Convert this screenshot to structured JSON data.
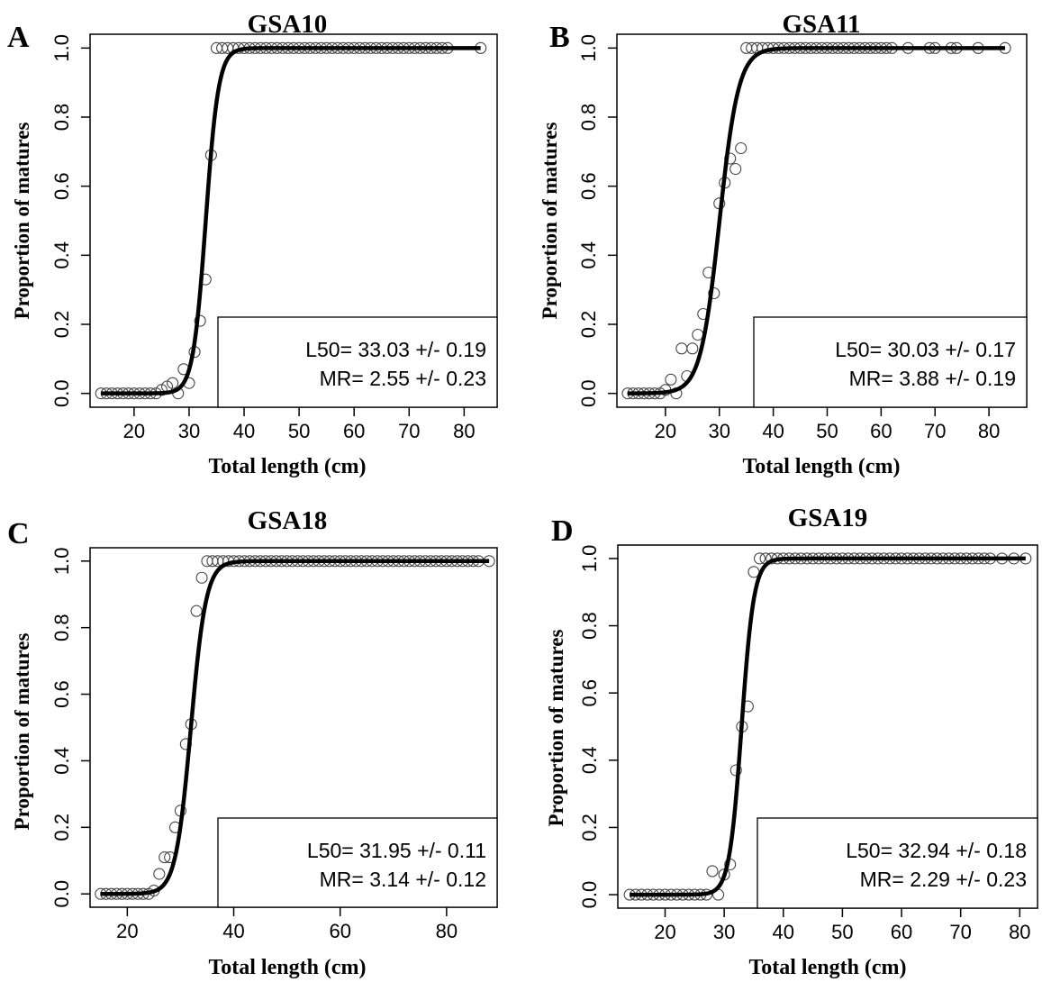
{
  "chart_data": [
    {
      "type": "scatter",
      "panel_letter": "A",
      "title": "GSA10",
      "xlabel": "Total length (cm)",
      "ylabel": "Proportion of matures",
      "xlim": [
        12,
        86
      ],
      "ylim": [
        -0.04,
        1.04
      ],
      "xticks": [
        20,
        30,
        40,
        50,
        60,
        70,
        80
      ],
      "yticks": [
        0.0,
        0.2,
        0.4,
        0.6,
        0.8,
        1.0
      ],
      "curve": {
        "model": "logistic",
        "L50": 33.03,
        "MR": 2.55
      },
      "annotation": [
        "L50=  33.03 +/- 0.19",
        "MR=  2.55 +/- 0.23"
      ],
      "grid": false,
      "legend_position": "bottom-right",
      "series": [
        {
          "x": [
            14,
            15,
            16,
            17,
            18,
            19,
            20,
            21,
            22,
            23,
            24,
            25,
            26,
            27,
            28,
            29,
            30,
            31,
            32,
            33,
            34,
            35,
            36,
            37,
            38,
            39,
            40,
            41,
            42,
            43,
            44,
            45,
            46,
            47,
            48,
            49,
            50,
            51,
            52,
            53,
            54,
            55,
            56,
            57,
            58,
            59,
            60,
            61,
            62,
            63,
            64,
            65,
            66,
            67,
            68,
            69,
            70,
            71,
            72,
            73,
            74,
            75,
            76,
            77,
            83
          ],
          "y": [
            0,
            0,
            0,
            0,
            0,
            0,
            0,
            0,
            0,
            0,
            0,
            0.01,
            0.02,
            0.03,
            0,
            0.07,
            0.03,
            0.12,
            0.21,
            0.33,
            0.69,
            1,
            1,
            1,
            1,
            1,
            1,
            1,
            1,
            1,
            1,
            1,
            1,
            1,
            1,
            1,
            1,
            1,
            1,
            1,
            1,
            1,
            1,
            1,
            1,
            1,
            1,
            1,
            1,
            1,
            1,
            1,
            1,
            1,
            1,
            1,
            1,
            1,
            1,
            1,
            1,
            1,
            1,
            1,
            1
          ]
        }
      ]
    },
    {
      "type": "scatter",
      "panel_letter": "B",
      "title": "GSA11",
      "xlabel": "Total length (cm)",
      "ylabel": "Proportion of matures",
      "xlim": [
        11,
        87
      ],
      "ylim": [
        -0.04,
        1.04
      ],
      "xticks": [
        20,
        30,
        40,
        50,
        60,
        70,
        80
      ],
      "yticks": [
        0.0,
        0.2,
        0.4,
        0.6,
        0.8,
        1.0
      ],
      "curve": {
        "model": "logistic",
        "L50": 30.03,
        "MR": 3.88
      },
      "annotation": [
        "L50=  30.03 +/- 0.17",
        "MR=  3.88 +/- 0.19"
      ],
      "grid": false,
      "legend_position": "bottom-right",
      "series": [
        {
          "x": [
            13,
            14,
            15,
            16,
            17,
            18,
            19,
            20,
            21,
            22,
            23,
            24,
            25,
            26,
            27,
            28,
            29,
            30,
            31,
            32,
            33,
            34,
            35,
            36,
            37,
            38,
            39,
            40,
            41,
            42,
            43,
            44,
            45,
            46,
            47,
            48,
            49,
            50,
            51,
            52,
            53,
            54,
            55,
            56,
            57,
            58,
            59,
            60,
            61,
            62,
            65,
            69,
            70,
            73,
            74,
            78,
            83
          ],
          "y": [
            0,
            0,
            0,
            0,
            0,
            0,
            0,
            0.01,
            0.04,
            0,
            0.13,
            0.05,
            0.13,
            0.17,
            0.23,
            0.35,
            0.29,
            0.55,
            0.61,
            0.68,
            0.65,
            0.71,
            1,
            1,
            1,
            1,
            1,
            1,
            1,
            1,
            1,
            1,
            1,
            1,
            1,
            1,
            1,
            1,
            1,
            1,
            1,
            1,
            1,
            1,
            1,
            1,
            1,
            1,
            1,
            1,
            1,
            1,
            1,
            1,
            1,
            1,
            1
          ]
        }
      ]
    },
    {
      "type": "scatter",
      "panel_letter": "C",
      "title": "GSA18",
      "xlabel": "Total length (cm)",
      "ylabel": "Proportion of matures",
      "xlim": [
        13,
        89.5
      ],
      "ylim": [
        -0.04,
        1.04
      ],
      "xticks": [
        20,
        40,
        60,
        80
      ],
      "yticks": [
        0.0,
        0.2,
        0.4,
        0.6,
        0.8,
        1.0
      ],
      "curve": {
        "model": "logistic",
        "L50": 31.95,
        "MR": 3.14
      },
      "annotation": [
        "L50=  31.95 +/- 0.11",
        "MR=  3.14 +/- 0.12"
      ],
      "grid": false,
      "legend_position": "bottom-right",
      "series": [
        {
          "x": [
            15,
            16,
            17,
            18,
            19,
            20,
            21,
            22,
            23,
            24,
            25,
            26,
            27,
            28,
            29,
            30,
            31,
            32,
            33,
            34,
            35,
            36,
            37,
            38,
            39,
            40,
            41,
            42,
            43,
            44,
            45,
            46,
            47,
            48,
            49,
            50,
            51,
            52,
            53,
            54,
            55,
            56,
            57,
            58,
            59,
            60,
            61,
            62,
            63,
            64,
            65,
            66,
            67,
            68,
            69,
            70,
            71,
            72,
            73,
            74,
            75,
            76,
            77,
            78,
            79,
            80,
            81,
            82,
            83,
            84,
            85,
            86,
            88
          ],
          "y": [
            0,
            0,
            0,
            0,
            0,
            0,
            0,
            0,
            0,
            0,
            0.01,
            0.06,
            0.11,
            0.11,
            0.2,
            0.25,
            0.45,
            0.51,
            0.85,
            0.95,
            1,
            1,
            1,
            1,
            1,
            1,
            1,
            1,
            1,
            1,
            1,
            1,
            1,
            1,
            1,
            1,
            1,
            1,
            1,
            1,
            1,
            1,
            1,
            1,
            1,
            1,
            1,
            1,
            1,
            1,
            1,
            1,
            1,
            1,
            1,
            1,
            1,
            1,
            1,
            1,
            1,
            1,
            1,
            1,
            1,
            1,
            1,
            1,
            1,
            1,
            1,
            1,
            1
          ]
        }
      ]
    },
    {
      "type": "scatter",
      "panel_letter": "D",
      "title": "GSA19",
      "xlabel": "Total length (cm)",
      "ylabel": "Proportion of matures",
      "xlim": [
        12,
        83
      ],
      "ylim": [
        -0.04,
        1.04
      ],
      "xticks": [
        20,
        30,
        40,
        50,
        60,
        70,
        80
      ],
      "yticks": [
        0.0,
        0.2,
        0.4,
        0.6,
        0.8,
        1.0
      ],
      "curve": {
        "model": "logistic",
        "L50": 32.94,
        "MR": 2.29
      },
      "annotation": [
        "L50=  32.94 +/- 0.18",
        "MR=  2.29 +/- 0.23"
      ],
      "grid": false,
      "legend_position": "bottom-right",
      "series": [
        {
          "x": [
            14,
            15,
            16,
            17,
            18,
            19,
            20,
            21,
            22,
            23,
            24,
            25,
            26,
            27,
            28,
            29,
            30,
            31,
            32,
            33,
            34,
            35,
            36,
            37,
            38,
            39,
            40,
            41,
            42,
            43,
            44,
            45,
            46,
            47,
            48,
            49,
            50,
            51,
            52,
            53,
            54,
            55,
            56,
            57,
            58,
            59,
            60,
            61,
            62,
            63,
            64,
            65,
            66,
            67,
            68,
            69,
            70,
            71,
            72,
            73,
            74,
            75,
            77,
            79,
            81
          ],
          "y": [
            0,
            0,
            0,
            0,
            0,
            0,
            0,
            0,
            0,
            0,
            0,
            0,
            0,
            0,
            0.07,
            0,
            0.06,
            0.09,
            0.37,
            0.5,
            0.56,
            0.96,
            1,
            1,
            1,
            1,
            1,
            1,
            1,
            1,
            1,
            1,
            1,
            1,
            1,
            1,
            1,
            1,
            1,
            1,
            1,
            1,
            1,
            1,
            1,
            1,
            1,
            1,
            1,
            1,
            1,
            1,
            1,
            1,
            1,
            1,
            1,
            1,
            1,
            1,
            1,
            1,
            1,
            1,
            1
          ]
        }
      ]
    }
  ]
}
